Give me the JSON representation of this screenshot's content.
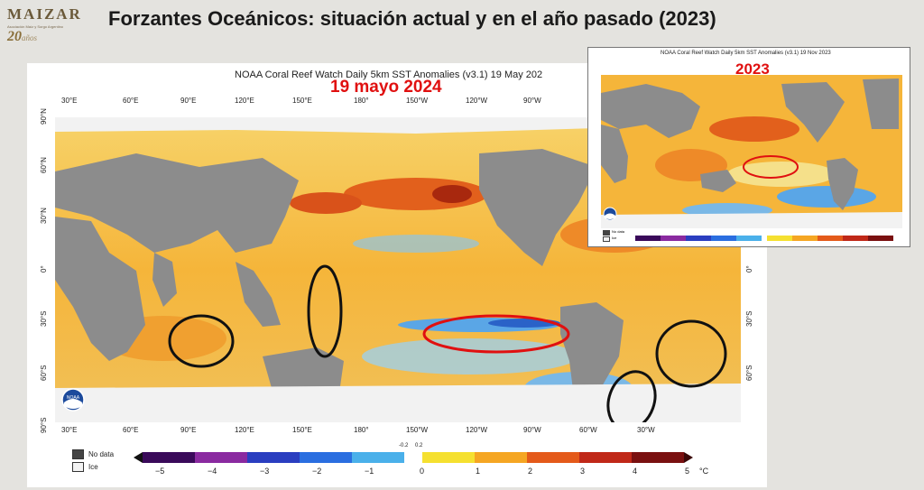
{
  "logo": {
    "name": "MAIZAR",
    "subtitle": "Asociación Maíz y Sorgo Argentino",
    "years_num": "20",
    "years_word": "años"
  },
  "slide_title": "Forzantes Oceánicos: situación actual y en el año pasado (2023)",
  "main_map": {
    "title": "NOAA Coral Reef Watch Daily 5km SST Anomalies  (v3.1)   19 May 202",
    "date_label": "19 mayo 2024",
    "lon_ticks": [
      "30°E",
      "60°E",
      "90°E",
      "120°E",
      "150°E",
      "180°",
      "150°W",
      "120°W",
      "90°W",
      "60°W",
      "30°W"
    ],
    "lat_ticks_left": [
      "90°N",
      "60°N",
      "30°N",
      "0°",
      "30°S",
      "60°S",
      "90°S"
    ],
    "lat_ticks_right": [
      "0°",
      "30°S",
      "60°S"
    ],
    "legend": {
      "no_data": "No data",
      "ice": "Ice"
    },
    "colorbar": {
      "ticks": [
        "−5",
        "−4",
        "−3",
        "−2",
        "−1",
        "0",
        "1",
        "2",
        "3",
        "4",
        "5"
      ],
      "minor_ticks": [
        "-0.2",
        "0.2"
      ],
      "unit": "°C"
    },
    "noaa": "NOAA"
  },
  "inset_map": {
    "title": "NOAA Coral Reef Watch Daily 5km SST Anomalies  (v3.1)   19 Nov 2023",
    "year_label": "2023",
    "legend": {
      "no_data": "No data",
      "ice": "Ice"
    }
  },
  "colors": {
    "red_ellipse": "#e01010",
    "black_ellipse": "#111111",
    "land": "#8c8c8c",
    "ice": "#f2f2f2",
    "warm": "#f5a623",
    "cool": "#3b7fd9"
  }
}
